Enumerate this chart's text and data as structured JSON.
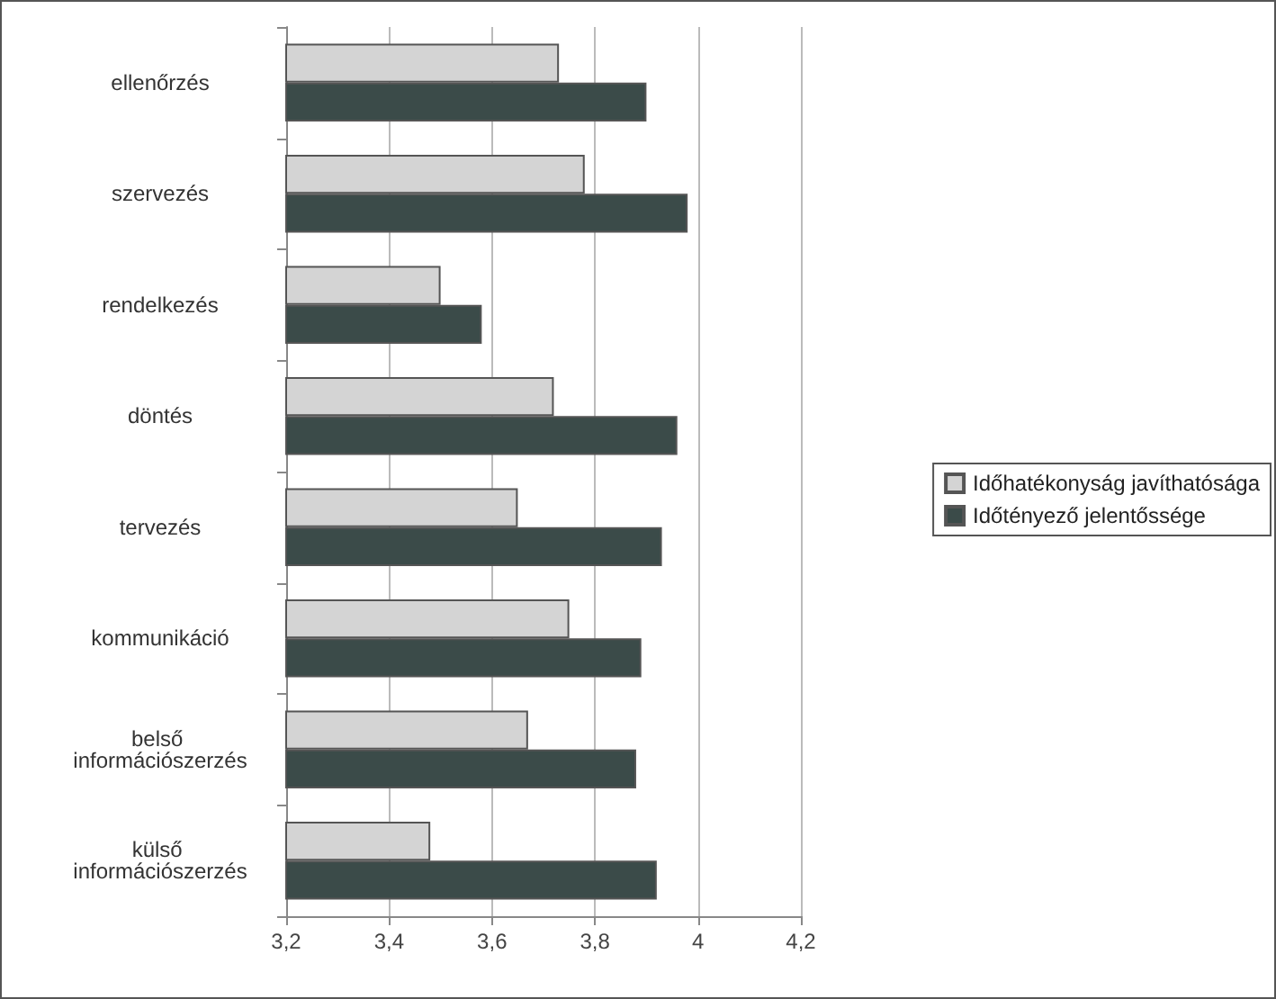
{
  "chart_data": {
    "type": "bar",
    "orientation": "horizontal",
    "categories": [
      "ellenőrzés",
      "szervezés",
      "rendelkezés",
      "döntés",
      "tervezés",
      "kommunikáció",
      "belső információszerzés",
      "külső információszerzés"
    ],
    "series": [
      {
        "name": "Időhatékonyság javíthatósága",
        "color": "#d4d4d4",
        "values": [
          3.73,
          3.78,
          3.5,
          3.72,
          3.65,
          3.75,
          3.67,
          3.48
        ]
      },
      {
        "name": "Időtényező jelentőssége",
        "color": "#3b4b49",
        "values": [
          3.9,
          3.98,
          3.58,
          3.96,
          3.93,
          3.89,
          3.88,
          3.92
        ]
      }
    ],
    "xlim": [
      3.2,
      4.2
    ],
    "xticks": [
      {
        "value": 3.2,
        "label": "3,2"
      },
      {
        "value": 3.4,
        "label": "3,4"
      },
      {
        "value": 3.6,
        "label": "3,6"
      },
      {
        "value": 3.8,
        "label": "3,8"
      },
      {
        "value": 4,
        "label": "4"
      },
      {
        "value": 4.2,
        "label": "4,2"
      }
    ],
    "grid": "x",
    "legend": "right"
  }
}
